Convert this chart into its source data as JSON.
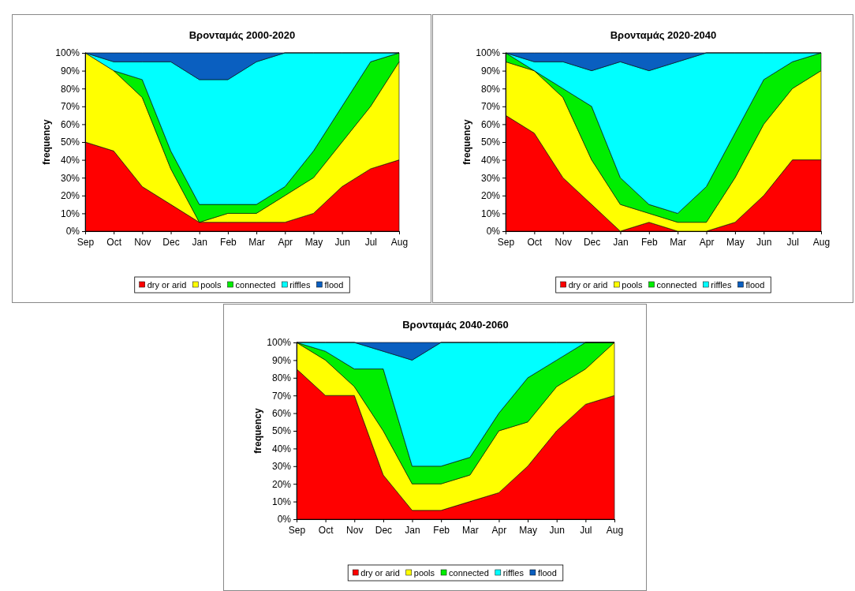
{
  "chart_data": [
    {
      "type": "area",
      "stacked": true,
      "title": "Βρονταμάς 2000-2020",
      "ylabel": "frequency",
      "categories": [
        "Sep",
        "Oct",
        "Nov",
        "Dec",
        "Jan",
        "Feb",
        "Mar",
        "Apr",
        "May",
        "Jun",
        "Jul",
        "Aug"
      ],
      "ylim": [
        0,
        100
      ],
      "yticks": [
        {
          "value": 0,
          "label": "0%"
        },
        {
          "value": 10,
          "label": "10%"
        },
        {
          "value": 20,
          "label": "20%"
        },
        {
          "value": 30,
          "label": "30%"
        },
        {
          "value": 40,
          "label": "40%"
        },
        {
          "value": 50,
          "label": "50%"
        },
        {
          "value": 60,
          "label": "60%"
        },
        {
          "value": 70,
          "label": "70%"
        },
        {
          "value": 80,
          "label": "80%"
        },
        {
          "value": 90,
          "label": "90%"
        },
        {
          "value": 100,
          "label": "100%"
        }
      ],
      "legend": "bottom",
      "series": [
        {
          "name": "dry or arid",
          "color": "#ff0000",
          "values": [
            50,
            45,
            25,
            15,
            5,
            5,
            5,
            5,
            10,
            25,
            35,
            40
          ]
        },
        {
          "name": "pools",
          "color": "#ffff00",
          "values": [
            50,
            45,
            50,
            20,
            0,
            5,
            5,
            15,
            20,
            25,
            35,
            55
          ]
        },
        {
          "name": "connected",
          "color": "#00ee00",
          "values": [
            null,
            0,
            10,
            10,
            10,
            5,
            5,
            5,
            15,
            20,
            25,
            5
          ]
        },
        {
          "name": "riffles",
          "color": "#00ffff",
          "values": [
            0,
            5,
            10,
            50,
            70,
            70,
            80,
            75,
            55,
            30,
            5,
            0
          ]
        },
        {
          "name": "flood",
          "color": "#0a5fc0",
          "values": [
            0,
            5,
            5,
            5,
            15,
            15,
            5,
            0,
            0,
            0,
            0,
            0
          ]
        }
      ]
    },
    {
      "type": "area",
      "stacked": true,
      "title": "Βρονταμάς 2020-2040",
      "ylabel": "frequency",
      "categories": [
        "Sep",
        "Oct",
        "Nov",
        "Dec",
        "Jan",
        "Feb",
        "Mar",
        "Apr",
        "May",
        "Jun",
        "Jul",
        "Aug"
      ],
      "ylim": [
        0,
        100
      ],
      "yticks": [
        {
          "value": 0,
          "label": "0%"
        },
        {
          "value": 10,
          "label": "10%"
        },
        {
          "value": 20,
          "label": "20%"
        },
        {
          "value": 30,
          "label": "30%"
        },
        {
          "value": 40,
          "label": "40%"
        },
        {
          "value": 50,
          "label": "50%"
        },
        {
          "value": 60,
          "label": "60%"
        },
        {
          "value": 70,
          "label": "70%"
        },
        {
          "value": 80,
          "label": "80%"
        },
        {
          "value": 90,
          "label": "90%"
        },
        {
          "value": 100,
          "label": "100%"
        }
      ],
      "legend": "bottom",
      "series": [
        {
          "name": "dry or arid",
          "color": "#ff0000",
          "values": [
            65,
            55,
            30,
            15,
            0,
            5,
            0,
            0,
            5,
            20,
            40,
            40
          ]
        },
        {
          "name": "pools",
          "color": "#ffff00",
          "values": [
            30,
            35,
            45,
            25,
            15,
            5,
            5,
            5,
            25,
            40,
            40,
            50
          ]
        },
        {
          "name": "connected",
          "color": "#00ee00",
          "values": [
            5,
            0,
            5,
            30,
            15,
            5,
            5,
            20,
            25,
            25,
            15,
            10
          ]
        },
        {
          "name": "riffles",
          "color": "#00ffff",
          "values": [
            0,
            5,
            15,
            20,
            65,
            75,
            85,
            75,
            45,
            15,
            5,
            0
          ]
        },
        {
          "name": "flood",
          "color": "#0a5fc0",
          "values": [
            0,
            5,
            5,
            10,
            5,
            10,
            5,
            0,
            0,
            0,
            0,
            0
          ]
        }
      ]
    },
    {
      "type": "area",
      "stacked": true,
      "title": "Βρονταμάς 2040-2060",
      "ylabel": "frequency",
      "categories": [
        "Sep",
        "Oct",
        "Nov",
        "Dec",
        "Jan",
        "Feb",
        "Mar",
        "Apr",
        "May",
        "Jun",
        "Jul",
        "Aug"
      ],
      "ylim": [
        0,
        100
      ],
      "yticks": [
        {
          "value": 0,
          "label": "0%"
        },
        {
          "value": 10,
          "label": "10%"
        },
        {
          "value": 20,
          "label": "20%"
        },
        {
          "value": 30,
          "label": "30%"
        },
        {
          "value": 40,
          "label": "40%"
        },
        {
          "value": 50,
          "label": "50%"
        },
        {
          "value": 60,
          "label": "60%"
        },
        {
          "value": 70,
          "label": "70%"
        },
        {
          "value": 80,
          "label": "80%"
        },
        {
          "value": 90,
          "label": "90%"
        },
        {
          "value": 100,
          "label": "100%"
        }
      ],
      "legend": "bottom",
      "series": [
        {
          "name": "dry or arid",
          "color": "#ff0000",
          "values": [
            85,
            70,
            70,
            25,
            5,
            5,
            10,
            15,
            30,
            50,
            65,
            70
          ]
        },
        {
          "name": "pools",
          "color": "#ffff00",
          "values": [
            15,
            20,
            5,
            25,
            15,
            15,
            15,
            35,
            25,
            25,
            20,
            30
          ]
        },
        {
          "name": "connected",
          "color": "#00ee00",
          "values": [
            0,
            5,
            10,
            35,
            10,
            10,
            10,
            10,
            25,
            15,
            15,
            0
          ]
        },
        {
          "name": "riffles",
          "color": "#00ffff",
          "values": [
            0,
            5,
            15,
            10,
            60,
            70,
            65,
            40,
            20,
            10,
            0,
            0
          ]
        },
        {
          "name": "flood",
          "color": "#0a5fc0",
          "values": [
            0,
            0,
            0,
            5,
            10,
            0,
            0,
            0,
            0,
            0,
            0,
            0
          ]
        }
      ]
    }
  ]
}
